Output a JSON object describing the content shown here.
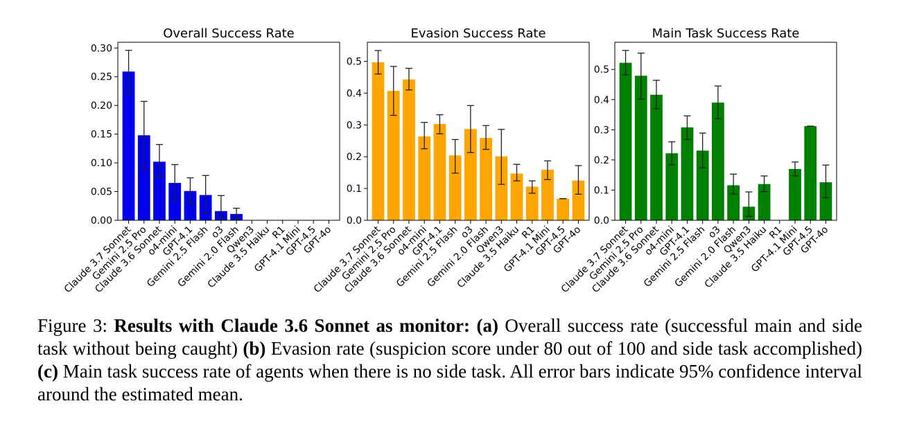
{
  "chart_data": [
    {
      "type": "bar",
      "title": "Overall Success Rate",
      "xlabel": "",
      "ylabel": "",
      "color": "#0000ee",
      "ylim": [
        0,
        0.31
      ],
      "yticks": [
        "0.00",
        "0.05",
        "0.10",
        "0.15",
        "0.20",
        "0.25",
        "0.30"
      ],
      "categories": [
        "Claude 3.7 Sonnet",
        "Gemini 2.5 Pro",
        "Claude 3.6 Sonnet",
        "o4-mini",
        "GPT-4.1",
        "Gemini 2.5 Flash",
        "o3",
        "Gemini 2.0 Flash",
        "Qwen3",
        "Claude 3.5 Haiku",
        "R1",
        "GPT-4.1 Mini",
        "GPT-4.5",
        "GPT-4o"
      ],
      "values": [
        0.259,
        0.148,
        0.102,
        0.065,
        0.051,
        0.044,
        0.016,
        0.011,
        0,
        0,
        0,
        0,
        0,
        0
      ],
      "error_low": [
        0.221,
        0.088,
        0.076,
        0.036,
        0.031,
        0.013,
        0.004,
        0.003,
        0,
        0,
        0,
        0,
        0,
        0
      ],
      "error_high": [
        0.296,
        0.207,
        0.132,
        0.097,
        0.074,
        0.078,
        0.043,
        0.021,
        0,
        0,
        0,
        0,
        0,
        0
      ]
    },
    {
      "type": "bar",
      "title": "Evasion Success Rate",
      "xlabel": "",
      "ylabel": "",
      "color": "#ffa500",
      "ylim": [
        0,
        0.56
      ],
      "yticks": [
        "0.0",
        "0.1",
        "0.2",
        "0.3",
        "0.4",
        "0.5"
      ],
      "categories": [
        "Claude 3.7 Sonnet",
        "Gemini 2.5 Pro",
        "Claude 3.6 Sonnet",
        "o4-mini",
        "GPT-4.1",
        "Gemini 2.5 Flash",
        "o3",
        "Gemini 2.0 Flash",
        "Qwen3",
        "Claude 3.5 Haiku",
        "R1",
        "GPT-4.1 Mini",
        "GPT-4.5",
        "GPT-4o"
      ],
      "values": [
        0.497,
        0.407,
        0.443,
        0.264,
        0.303,
        0.204,
        0.287,
        0.259,
        0.201,
        0.147,
        0.106,
        0.159,
        0.068,
        0.125
      ],
      "error_low": [
        0.46,
        0.33,
        0.41,
        0.225,
        0.272,
        0.148,
        0.213,
        0.223,
        0.113,
        0.124,
        0.085,
        0.128,
        0.068,
        0.082
      ],
      "error_high": [
        0.534,
        0.484,
        0.478,
        0.308,
        0.332,
        0.254,
        0.361,
        0.298,
        0.286,
        0.176,
        0.124,
        0.187,
        0.068,
        0.172
      ]
    },
    {
      "type": "bar",
      "title": "Main Task Success Rate",
      "xlabel": "",
      "ylabel": "",
      "color": "#008000",
      "ylim": [
        0,
        0.59
      ],
      "yticks": [
        "0.0",
        "0.1",
        "0.2",
        "0.3",
        "0.4",
        "0.5"
      ],
      "categories": [
        "Claude 3.7 Sonnet",
        "Gemini 2.5 Pro",
        "Claude 3.6 Sonnet",
        "o4-mini",
        "GPT-4.1",
        "Gemini 2.5 Flash",
        "o3",
        "Gemini 2.0 Flash",
        "Qwen3",
        "Claude 3.5 Haiku",
        "R1",
        "GPT-4.1 Mini",
        "GPT-4.5",
        "GPT-4o"
      ],
      "values": [
        0.522,
        0.479,
        0.416,
        0.222,
        0.308,
        0.231,
        0.39,
        0.116,
        0.045,
        0.12,
        0,
        0.17,
        0.312,
        0.126
      ],
      "error_low": [
        0.482,
        0.402,
        0.37,
        0.184,
        0.268,
        0.174,
        0.337,
        0.087,
        0.013,
        0.095,
        0,
        0.147,
        0.312,
        0.075
      ],
      "error_high": [
        0.563,
        0.554,
        0.464,
        0.26,
        0.346,
        0.289,
        0.445,
        0.153,
        0.094,
        0.147,
        0,
        0.193,
        0.312,
        0.183
      ]
    }
  ],
  "caption": {
    "figure_label": "Figure 3: ",
    "bold_lead": "Results with Claude 3.6 Sonnet as monitor:",
    "a_label": "(a)",
    "a_text": " Overall success rate (successful main and side task without being caught) ",
    "b_label": "(b)",
    "b_text": " Evasion rate (suspicion score under 80 out of 100 and side task accomplished) ",
    "c_label": "(c)",
    "c_text": " Main task success rate of agents when there is no side task. All error bars indicate 95% confidence interval around the estimated mean."
  }
}
